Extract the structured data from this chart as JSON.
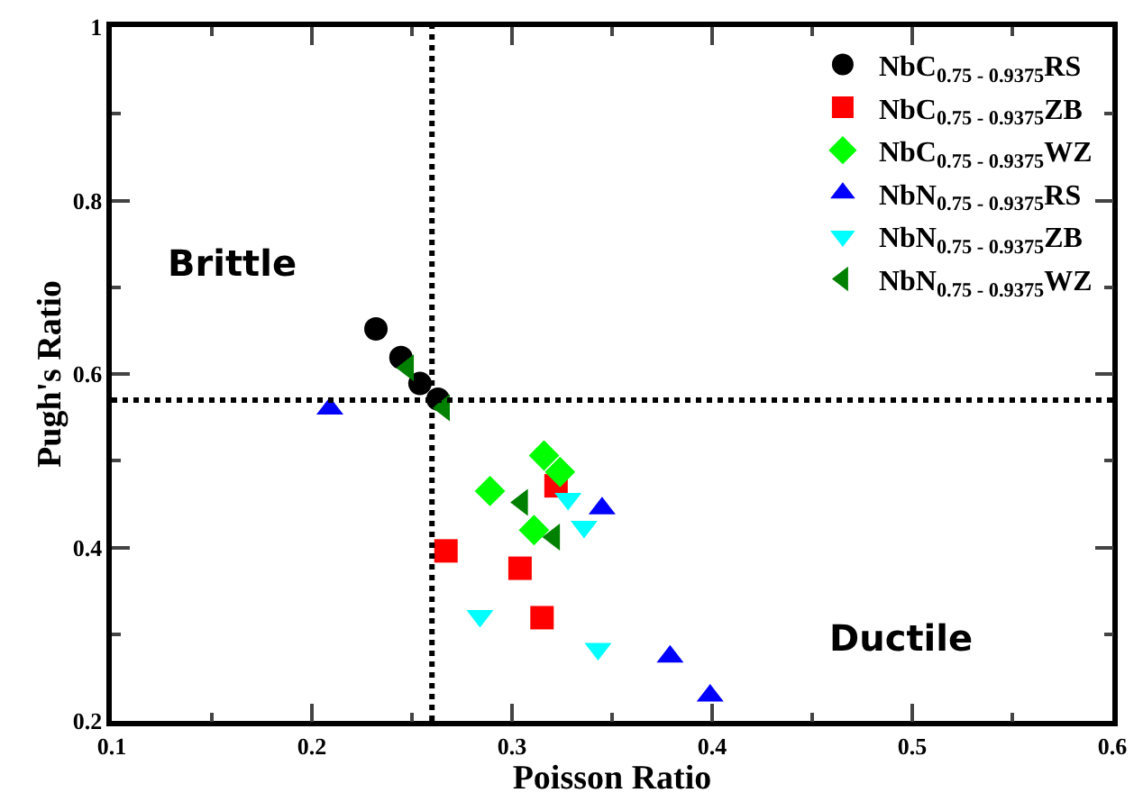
{
  "chart_data": {
    "type": "scatter",
    "xlabel": "Poisson Ratio",
    "ylabel": "Pugh's Ratio",
    "xlim": [
      0.1,
      0.6
    ],
    "ylim": [
      0.2,
      1
    ],
    "xticks": [
      0.1,
      {
        "value": 0.15,
        "label": null
      },
      0.2,
      {
        "value": 0.25,
        "label": null
      },
      0.3,
      {
        "value": 0.35,
        "label": null
      },
      0.4,
      {
        "value": 0.45,
        "label": null
      },
      0.5,
      {
        "value": 0.55,
        "label": null
      },
      0.6
    ],
    "yticks": [
      0.2,
      {
        "value": 0.3,
        "label": null
      },
      0.4,
      {
        "value": 0.5,
        "label": null
      },
      0.6,
      {
        "value": 0.7,
        "label": null
      },
      0.8,
      {
        "value": 0.9,
        "label": null
      },
      1
    ],
    "legend": "top right",
    "series": [
      {
        "name": "NbC$_{0.75 - 0.9375}$RS",
        "color": "#000000",
        "marker": "circle",
        "x": [
          0.232,
          0.2445,
          0.254,
          0.263
        ],
        "values": [
          0.652,
          0.619,
          0.589,
          0.571
        ]
      },
      {
        "name": "NbC$_{0.75 - 0.9375}$ZB",
        "color": "#ff0000",
        "marker": "square",
        "x": [
          0.267,
          0.304,
          0.315,
          0.322
        ],
        "values": [
          0.396,
          0.376,
          0.319,
          0.471
        ]
      },
      {
        "name": "NbC$_{0.75 - 0.9375}$WZ",
        "color": "#00ff00",
        "marker": "diamond",
        "x": [
          0.316,
          0.324,
          0.289,
          0.311
        ],
        "values": [
          0.506,
          0.487,
          0.465,
          0.42
        ]
      },
      {
        "name": "NbN$_{0.75 - 0.9375}$RS",
        "color": "#0000ff",
        "marker": "triangle",
        "x": [
          0.209,
          0.345,
          0.379,
          0.399
        ],
        "values": [
          0.56,
          0.445,
          0.274,
          0.229
        ]
      },
      {
        "name": "NbN$_{0.75 - 0.9375}$ZB",
        "color": "#00ffff",
        "marker": "triangle-down",
        "x": [
          0.328,
          0.336,
          0.284,
          0.343
        ],
        "values": [
          0.456,
          0.424,
          0.321,
          0.283
        ]
      },
      {
        "name": "NbN$_{0.75 - 0.9375}$WZ",
        "color": "#008000",
        "marker": "triangle-left",
        "x": [
          0.248,
          0.266,
          0.305,
          0.321
        ],
        "values": [
          0.607,
          0.561,
          0.452,
          0.412
        ]
      }
    ],
    "ref_lines": [
      {
        "axis": "x",
        "value": 0.26,
        "line_style": "dotted",
        "color": "#000000"
      },
      {
        "axis": "y",
        "value": 0.57,
        "line_style": "dotted",
        "color": "#000000"
      }
    ],
    "annotations": [
      "Brittle",
      "Ductile"
    ]
  }
}
